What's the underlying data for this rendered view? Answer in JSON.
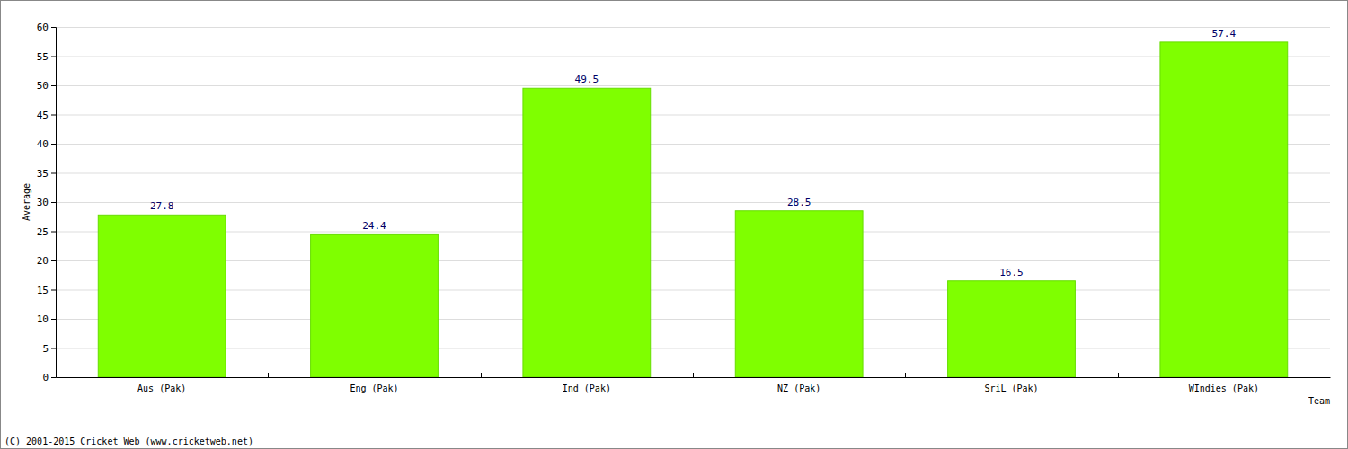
{
  "chart_data": {
    "type": "bar",
    "x_label": "Team",
    "y_label": "Average",
    "annotations": [
      "(C) 2001-2015 Cricket Web (www.cricketweb.net)"
    ],
    "categories": [
      "Aus (Pak)",
      "Eng (Pak)",
      "Ind (Pak)",
      "NZ (Pak)",
      "SriL (Pak)",
      "WIndies (Pak)"
    ],
    "values": [
      27.8,
      24.4,
      49.5,
      28.5,
      16.5,
      57.4
    ],
    "color": "#7fff00",
    "ylim": [
      0,
      60
    ],
    "yticks": [
      0,
      5,
      10,
      15,
      20,
      25,
      30,
      35,
      40,
      45,
      50,
      55,
      60
    ],
    "grid": true,
    "data_labels": true
  }
}
